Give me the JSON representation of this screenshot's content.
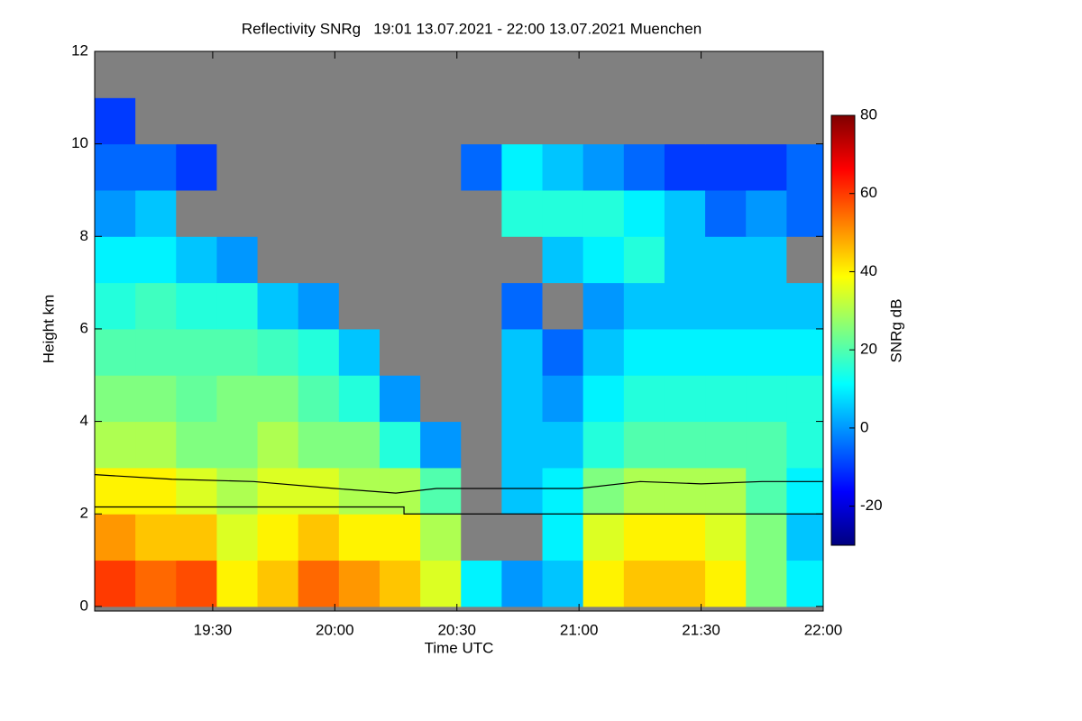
{
  "chart_data": {
    "type": "heatmap",
    "title": "Reflectivity SNRg   19:01 13.07.2021 - 22:00 13.07.2021 Muenchen",
    "x_label": "Time UTC",
    "y_label": "Height km",
    "colorbar_label": "SNRg dB",
    "colormap": "jet",
    "missing_color": "#808080",
    "xlim": [
      1141,
      1320
    ],
    "xticks": [
      {
        "value": 1170,
        "label": "19:30"
      },
      {
        "value": 1200,
        "label": "20:00"
      },
      {
        "value": 1230,
        "label": "20:30"
      },
      {
        "value": 1260,
        "label": "21:00"
      },
      {
        "value": 1290,
        "label": "21:30"
      },
      {
        "value": 1320,
        "label": "22:00"
      }
    ],
    "ylim": [
      -0.1,
      12
    ],
    "yticks": [
      0,
      2,
      4,
      6,
      8,
      10,
      12
    ],
    "zlim": [
      -30,
      80
    ],
    "zticks": [
      -20,
      0,
      20,
      40,
      60,
      80
    ],
    "x": [
      1146,
      1156,
      1166,
      1176,
      1186,
      1196,
      1206,
      1216,
      1226,
      1236,
      1246,
      1256,
      1266,
      1276,
      1286,
      1296,
      1306,
      1316
    ],
    "y": [
      0.5,
      1.5,
      2.5,
      3.5,
      4.5,
      5.5,
      6.5,
      7.5,
      8.5,
      9.5,
      10.5,
      11.5
    ],
    "z": [
      [
        60,
        55,
        58,
        40,
        45,
        55,
        50,
        45,
        35,
        10,
        0,
        5,
        40,
        45,
        45,
        40,
        25,
        10
      ],
      [
        50,
        45,
        45,
        35,
        40,
        45,
        40,
        40,
        30,
        null,
        null,
        10,
        35,
        40,
        40,
        35,
        25,
        5
      ],
      [
        40,
        40,
        35,
        30,
        35,
        35,
        30,
        30,
        20,
        null,
        5,
        10,
        25,
        30,
        30,
        30,
        20,
        10
      ],
      [
        30,
        30,
        25,
        25,
        30,
        25,
        25,
        15,
        0,
        null,
        5,
        5,
        15,
        20,
        20,
        20,
        20,
        15
      ],
      [
        25,
        25,
        22,
        25,
        25,
        20,
        15,
        0,
        null,
        null,
        5,
        0,
        10,
        15,
        15,
        15,
        15,
        15
      ],
      [
        20,
        20,
        20,
        20,
        18,
        15,
        5,
        null,
        null,
        null,
        5,
        -5,
        5,
        10,
        10,
        10,
        10,
        10
      ],
      [
        15,
        18,
        15,
        15,
        5,
        0,
        null,
        null,
        null,
        null,
        -5,
        null,
        0,
        5,
        5,
        5,
        5,
        5
      ],
      [
        10,
        10,
        5,
        0,
        null,
        null,
        null,
        null,
        null,
        null,
        null,
        5,
        10,
        15,
        5,
        5,
        5,
        null
      ],
      [
        0,
        5,
        null,
        null,
        null,
        null,
        null,
        null,
        null,
        null,
        15,
        15,
        15,
        10,
        5,
        -5,
        0,
        -5
      ],
      [
        -5,
        -5,
        -10,
        null,
        null,
        null,
        null,
        null,
        null,
        -5,
        10,
        5,
        0,
        -5,
        -10,
        -10,
        -10,
        -5
      ],
      [
        -10,
        null,
        null,
        null,
        null,
        null,
        null,
        null,
        null,
        null,
        null,
        null,
        null,
        null,
        null,
        null,
        null,
        null
      ],
      [
        null,
        null,
        null,
        null,
        null,
        null,
        null,
        null,
        null,
        null,
        null,
        null,
        null,
        null,
        null,
        null,
        null,
        null
      ]
    ],
    "series": [
      {
        "color": "#000000",
        "x": [
          1141,
          1160,
          1180,
          1200,
          1215,
          1225,
          1250,
          1260,
          1275,
          1290,
          1305,
          1320
        ],
        "values": [
          2.85,
          2.75,
          2.7,
          2.55,
          2.45,
          2.55,
          2.55,
          2.55,
          2.7,
          2.65,
          2.7,
          2.7
        ]
      },
      {
        "color": "#000000",
        "x": [
          1141,
          1217,
          1217,
          1320
        ],
        "values": [
          2.15,
          2.15,
          2.0,
          2.0
        ]
      }
    ]
  }
}
